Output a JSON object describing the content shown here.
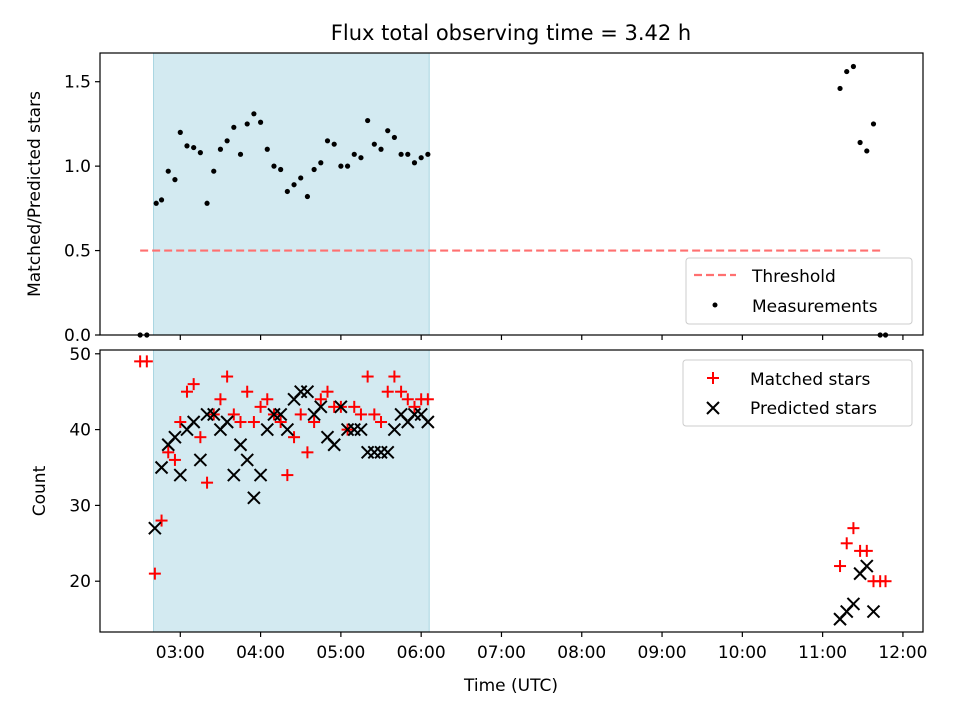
{
  "figure": {
    "title": "Flux total observing time = 3.42 h",
    "xlabel": "Time (UTC)",
    "x_ticks": [
      "03:00",
      "04:00",
      "05:00",
      "06:00",
      "07:00",
      "08:00",
      "09:00",
      "10:00",
      "11:00",
      "12:00"
    ]
  },
  "chart_data": [
    {
      "type": "scatter",
      "ylabel": "Matched/Predicted stars",
      "xlim": [
        "02:00",
        "12:15"
      ],
      "ylim": [
        0,
        1.67
      ],
      "y_ticks": [
        "0.0",
        "0.5",
        "1.0",
        "1.5"
      ],
      "y_tick_values": [
        0,
        0.5,
        1.0,
        1.5
      ],
      "shaded_interval": [
        "02:40",
        "06:06"
      ],
      "shaded_color": "#d3eaf1",
      "legend_position": "lower-right",
      "threshold": {
        "name": "Threshold",
        "y": 0.5,
        "x_range": [
          "02:30",
          "11:45"
        ],
        "color": "#ff7070"
      },
      "series": [
        {
          "name": "Measurements",
          "color": "#000000",
          "points": [
            [
              "02:30",
              0
            ],
            [
              "02:35",
              0
            ],
            [
              "02:42",
              0.78
            ],
            [
              "02:46",
              0.8
            ],
            [
              "02:51",
              0.97
            ],
            [
              "02:56",
              0.92
            ],
            [
              "03:00",
              1.2
            ],
            [
              "03:05",
              1.12
            ],
            [
              "03:10",
              1.11
            ],
            [
              "03:15",
              1.08
            ],
            [
              "03:20",
              0.78
            ],
            [
              "03:25",
              0.97
            ],
            [
              "03:30",
              1.1
            ],
            [
              "03:35",
              1.15
            ],
            [
              "03:40",
              1.23
            ],
            [
              "03:45",
              1.07
            ],
            [
              "03:50",
              1.25
            ],
            [
              "03:55",
              1.31
            ],
            [
              "04:00",
              1.26
            ],
            [
              "04:05",
              1.1
            ],
            [
              "04:10",
              1.0
            ],
            [
              "04:15",
              0.98
            ],
            [
              "04:20",
              0.85
            ],
            [
              "04:25",
              0.89
            ],
            [
              "04:30",
              0.93
            ],
            [
              "04:35",
              0.82
            ],
            [
              "04:40",
              0.98
            ],
            [
              "04:45",
              1.02
            ],
            [
              "04:50",
              1.15
            ],
            [
              "04:55",
              1.13
            ],
            [
              "05:00",
              1.0
            ],
            [
              "05:05",
              1.0
            ],
            [
              "05:10",
              1.07
            ],
            [
              "05:15",
              1.05
            ],
            [
              "05:20",
              1.27
            ],
            [
              "05:25",
              1.13
            ],
            [
              "05:30",
              1.1
            ],
            [
              "05:35",
              1.21
            ],
            [
              "05:40",
              1.17
            ],
            [
              "05:45",
              1.07
            ],
            [
              "05:50",
              1.07
            ],
            [
              "05:55",
              1.02
            ],
            [
              "06:00",
              1.05
            ],
            [
              "06:05",
              1.07
            ],
            [
              "11:13",
              1.46
            ],
            [
              "11:18",
              1.56
            ],
            [
              "11:23",
              1.59
            ],
            [
              "11:28",
              1.14
            ],
            [
              "11:33",
              1.09
            ],
            [
              "11:38",
              1.25
            ],
            [
              "11:43",
              0
            ],
            [
              "11:47",
              0
            ]
          ]
        }
      ]
    },
    {
      "type": "scatter",
      "ylabel": "Count",
      "xlim": [
        "02:00",
        "12:15"
      ],
      "ylim": [
        13.3,
        50.5
      ],
      "y_ticks": [
        "20",
        "30",
        "40",
        "50"
      ],
      "y_tick_values": [
        20,
        30,
        40,
        50
      ],
      "shaded_interval": [
        "02:40",
        "06:06"
      ],
      "shaded_color": "#d3eaf1",
      "legend_position": "upper-right",
      "series": [
        {
          "name": "Matched stars",
          "marker": "plus",
          "color": "#ff0000",
          "points": [
            [
              "02:30",
              49
            ],
            [
              "02:35",
              49
            ],
            [
              "02:41",
              21
            ],
            [
              "02:46",
              28
            ],
            [
              "02:51",
              37
            ],
            [
              "02:56",
              36
            ],
            [
              "03:00",
              41
            ],
            [
              "03:05",
              45
            ],
            [
              "03:10",
              46
            ],
            [
              "03:15",
              39
            ],
            [
              "03:20",
              33
            ],
            [
              "03:25",
              42
            ],
            [
              "03:30",
              44
            ],
            [
              "03:35",
              47
            ],
            [
              "03:40",
              42
            ],
            [
              "03:45",
              41
            ],
            [
              "03:50",
              45
            ],
            [
              "03:55",
              41
            ],
            [
              "04:00",
              43
            ],
            [
              "04:05",
              44
            ],
            [
              "04:10",
              42
            ],
            [
              "04:15",
              41
            ],
            [
              "04:20",
              34
            ],
            [
              "04:25",
              39
            ],
            [
              "04:30",
              42
            ],
            [
              "04:35",
              37
            ],
            [
              "04:40",
              41
            ],
            [
              "04:45",
              44
            ],
            [
              "04:50",
              45
            ],
            [
              "04:55",
              43
            ],
            [
              "05:00",
              43
            ],
            [
              "05:05",
              40
            ],
            [
              "05:10",
              43
            ],
            [
              "05:15",
              42
            ],
            [
              "05:20",
              47
            ],
            [
              "05:25",
              42
            ],
            [
              "05:30",
              41
            ],
            [
              "05:35",
              45
            ],
            [
              "05:40",
              47
            ],
            [
              "05:45",
              45
            ],
            [
              "05:50",
              44
            ],
            [
              "05:55",
              43
            ],
            [
              "06:00",
              44
            ],
            [
              "06:05",
              44
            ],
            [
              "11:13",
              22
            ],
            [
              "11:18",
              25
            ],
            [
              "11:23",
              27
            ],
            [
              "11:28",
              24
            ],
            [
              "11:33",
              24
            ],
            [
              "11:38",
              20
            ],
            [
              "11:43",
              20
            ],
            [
              "11:47",
              20
            ]
          ]
        },
        {
          "name": "Predicted stars",
          "marker": "x",
          "color": "#000000",
          "points": [
            [
              "02:41",
              27
            ],
            [
              "02:46",
              35
            ],
            [
              "02:51",
              38
            ],
            [
              "02:56",
              39
            ],
            [
              "03:00",
              34
            ],
            [
              "03:05",
              40
            ],
            [
              "03:10",
              41
            ],
            [
              "03:15",
              36
            ],
            [
              "03:20",
              42
            ],
            [
              "03:25",
              42
            ],
            [
              "03:30",
              40
            ],
            [
              "03:35",
              41
            ],
            [
              "03:40",
              34
            ],
            [
              "03:45",
              38
            ],
            [
              "03:50",
              36
            ],
            [
              "03:55",
              31
            ],
            [
              "04:00",
              34
            ],
            [
              "04:05",
              40
            ],
            [
              "04:10",
              42
            ],
            [
              "04:15",
              42
            ],
            [
              "04:20",
              40
            ],
            [
              "04:25",
              44
            ],
            [
              "04:30",
              45
            ],
            [
              "04:35",
              45
            ],
            [
              "04:40",
              42
            ],
            [
              "04:45",
              43
            ],
            [
              "04:50",
              39
            ],
            [
              "04:55",
              38
            ],
            [
              "05:00",
              43
            ],
            [
              "05:05",
              40
            ],
            [
              "05:10",
              40
            ],
            [
              "05:15",
              40
            ],
            [
              "05:20",
              37
            ],
            [
              "05:25",
              37
            ],
            [
              "05:30",
              37
            ],
            [
              "05:35",
              37
            ],
            [
              "05:40",
              40
            ],
            [
              "05:45",
              42
            ],
            [
              "05:50",
              41
            ],
            [
              "05:55",
              42
            ],
            [
              "06:00",
              42
            ],
            [
              "06:05",
              41
            ],
            [
              "11:13",
              15
            ],
            [
              "11:18",
              16
            ],
            [
              "11:23",
              17
            ],
            [
              "11:28",
              21
            ],
            [
              "11:33",
              22
            ],
            [
              "11:38",
              16
            ]
          ]
        }
      ]
    }
  ]
}
